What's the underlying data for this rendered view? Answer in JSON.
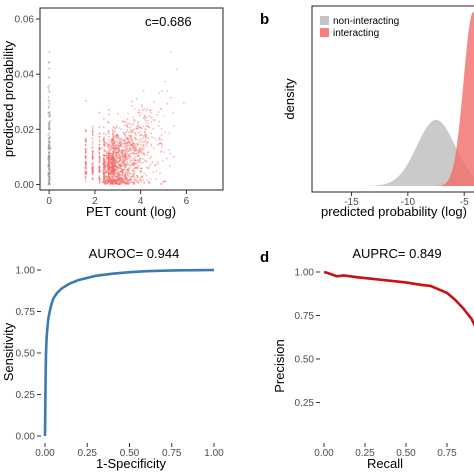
{
  "panel_letters": {
    "b": "b",
    "d": "d"
  },
  "colors": {
    "interacting": "#f26b66",
    "non_interacting": "#b8b8b8",
    "roc": "#3b7bb3",
    "prc": "#cc1111"
  },
  "chart_data": [
    {
      "type": "scatter",
      "xlabel": "PET count (log)",
      "ylabel": "predicted probability",
      "xlim": [
        -0.4,
        7.6
      ],
      "ylim": [
        -0.002,
        0.064
      ],
      "xticks": [
        0,
        2,
        4,
        6
      ],
      "yticks": [
        0.0,
        0.02,
        0.04,
        0.06
      ],
      "ytick_labels": [
        "0.00",
        "0.02",
        "0.04",
        "0.06"
      ],
      "annotation": "c=0.686",
      "grid": false
    },
    {
      "type": "area",
      "xlabel": "predicted probability (log)",
      "ylabel": "density",
      "xlim": [
        -18.5,
        -3.6
      ],
      "xticks": [
        -15,
        -10,
        -5
      ],
      "legend_position": "top-left",
      "series": [
        {
          "name": "non-interacting",
          "mean": -7.5,
          "sd": 1.7,
          "peak": 0.38
        },
        {
          "name": "interacting",
          "mean": -4.2,
          "sd": 0.85,
          "peak": 1.0
        }
      ]
    },
    {
      "type": "line",
      "title": "AUROC= 0.944",
      "xlabel": "1-Specificity",
      "ylabel": "Sensitivity",
      "xlim": [
        0,
        1
      ],
      "ylim": [
        0,
        1
      ],
      "xticks": [
        0.0,
        0.25,
        0.5,
        0.75,
        1.0
      ],
      "yticks": [
        0.0,
        0.25,
        0.5,
        0.75,
        1.0
      ],
      "tick_labels": [
        "0.00",
        "0.25",
        "0.50",
        "0.75",
        "1.00"
      ],
      "x": [
        0,
        0.002,
        0.004,
        0.006,
        0.01,
        0.015,
        0.02,
        0.03,
        0.04,
        0.05,
        0.07,
        0.1,
        0.15,
        0.2,
        0.3,
        0.4,
        0.5,
        0.6,
        0.7,
        0.8,
        0.9,
        1.0
      ],
      "y": [
        0,
        0.2,
        0.38,
        0.5,
        0.6,
        0.66,
        0.71,
        0.76,
        0.8,
        0.83,
        0.86,
        0.89,
        0.92,
        0.94,
        0.965,
        0.978,
        0.987,
        0.993,
        0.996,
        0.998,
        0.999,
        1.0
      ]
    },
    {
      "type": "line",
      "title": "AUPRC= 0.849",
      "xlabel": "Recall",
      "ylabel": "Precision",
      "xlim": [
        0,
        1
      ],
      "ylim": [
        0,
        1
      ],
      "xticks": [
        0.0,
        0.25,
        0.5,
        0.75
      ],
      "yticks": [
        0.25,
        0.5,
        0.75,
        1.0
      ],
      "tick_labels": [
        "0.00",
        "0.25",
        "0.50",
        "0.75",
        "1.00"
      ],
      "x": [
        0,
        0.02,
        0.05,
        0.08,
        0.12,
        0.2,
        0.3,
        0.4,
        0.5,
        0.6,
        0.65,
        0.7,
        0.75,
        0.8,
        0.85,
        0.9,
        0.95,
        0.98
      ],
      "y": [
        1.0,
        0.995,
        0.985,
        0.975,
        0.98,
        0.97,
        0.96,
        0.95,
        0.94,
        0.925,
        0.92,
        0.9,
        0.88,
        0.84,
        0.79,
        0.73,
        0.63,
        0.55
      ]
    }
  ]
}
